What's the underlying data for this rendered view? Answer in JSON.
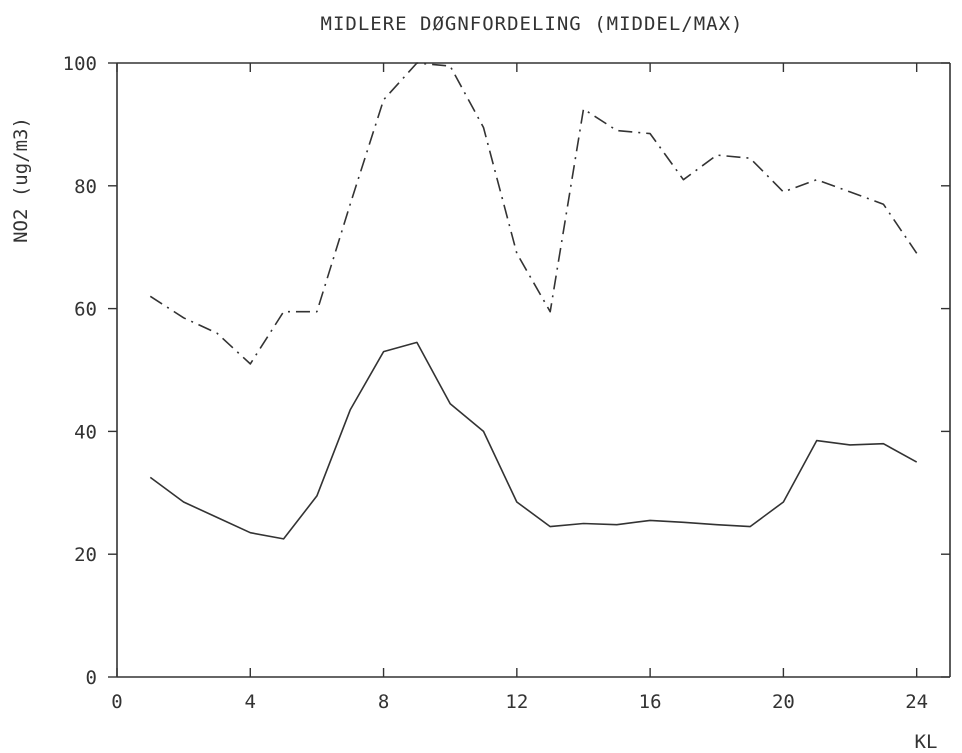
{
  "chart_data": {
    "type": "line",
    "title": "MIDLERE DØGNFORDELING (MIDDEL/MAX)",
    "xlabel": "KL",
    "ylabel": "NO2 (ug/m3)",
    "xlim": [
      0,
      25
    ],
    "ylim": [
      0,
      100
    ],
    "xticks": [
      0,
      4,
      8,
      12,
      16,
      20,
      24
    ],
    "yticks": [
      0,
      20,
      40,
      60,
      80,
      100
    ],
    "grid": false,
    "x": [
      1,
      2,
      3,
      4,
      5,
      6,
      7,
      8,
      9,
      10,
      11,
      12,
      13,
      14,
      15,
      16,
      17,
      18,
      19,
      20,
      21,
      22,
      23,
      24
    ],
    "series": [
      {
        "style": "solid",
        "values": [
          32.5,
          28.5,
          26,
          23.5,
          22.5,
          29.5,
          43.5,
          53,
          54.5,
          44.5,
          40,
          28.5,
          24.5,
          25,
          24.8,
          25.5,
          25.2,
          24.8,
          24.5,
          28.5,
          38.5,
          37.8,
          38,
          35
        ]
      },
      {
        "style": "dash-dot",
        "values": [
          62,
          58.5,
          56,
          51,
          59.5,
          59.5,
          77,
          94,
          100,
          99.5,
          89.5,
          69,
          59.5,
          92.5,
          89,
          88.5,
          81,
          85,
          84.5,
          79,
          81,
          79,
          77,
          69
        ]
      }
    ],
    "colors": {
      "axis": "#333333",
      "line": "#333333",
      "background": "#ffffff"
    }
  }
}
